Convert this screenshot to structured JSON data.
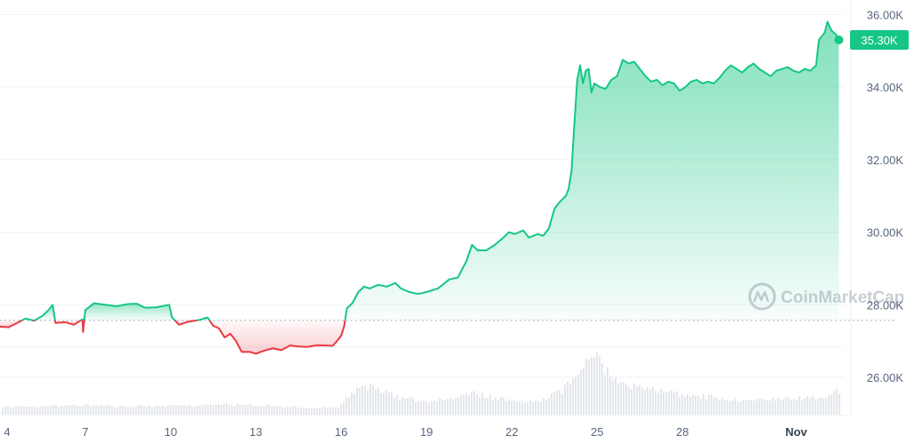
{
  "chart_data": {
    "type": "area",
    "title": "",
    "xlabel": "",
    "ylabel": "",
    "ylim": [
      24900,
      36400
    ],
    "y_ticks": [
      26000,
      28000,
      30000,
      32000,
      34000,
      36000
    ],
    "y_tick_labels": [
      "26.00K",
      "28.00K",
      "30.00K",
      "32.00K",
      "34.00K",
      "36.00K"
    ],
    "x_range": [
      4,
      33.55
    ],
    "x_ticks": [
      4,
      7,
      10,
      13,
      16,
      19,
      22,
      25,
      28,
      32
    ],
    "x_tick_labels": [
      "4",
      "7",
      "10",
      "13",
      "16",
      "19",
      "22",
      "25",
      "28",
      "Nov"
    ],
    "reference_value": 27570,
    "current_value": 35300,
    "current_label": "35.30K",
    "up_color": "#16c784",
    "down_color": "#ea3943",
    "grid": true,
    "watermark": "CoinMarketCap",
    "series": [
      {
        "values": [
          [
            4.0,
            27400
          ],
          [
            4.3,
            27380
          ],
          [
            4.6,
            27500
          ],
          [
            4.9,
            27620
          ],
          [
            5.2,
            27560
          ],
          [
            5.5,
            27700
          ],
          [
            5.7,
            27850
          ],
          [
            5.85,
            28000
          ],
          [
            5.95,
            27500
          ],
          [
            6.3,
            27520
          ],
          [
            6.6,
            27450
          ],
          [
            6.9,
            27600
          ],
          [
            6.92,
            27250
          ],
          [
            7.0,
            27850
          ],
          [
            7.3,
            28040
          ],
          [
            7.7,
            28000
          ],
          [
            8.1,
            27960
          ],
          [
            8.5,
            28020
          ],
          [
            8.8,
            28030
          ],
          [
            9.1,
            27920
          ],
          [
            9.5,
            27930
          ],
          [
            9.95,
            28000
          ],
          [
            10.05,
            27650
          ],
          [
            10.3,
            27450
          ],
          [
            10.6,
            27530
          ],
          [
            11.0,
            27580
          ],
          [
            11.3,
            27650
          ],
          [
            11.5,
            27420
          ],
          [
            11.7,
            27350
          ],
          [
            11.9,
            27100
          ],
          [
            12.1,
            27200
          ],
          [
            12.3,
            27000
          ],
          [
            12.5,
            26700
          ],
          [
            12.8,
            26700
          ],
          [
            13.0,
            26650
          ],
          [
            13.3,
            26740
          ],
          [
            13.6,
            26800
          ],
          [
            13.9,
            26750
          ],
          [
            14.2,
            26880
          ],
          [
            14.5,
            26850
          ],
          [
            14.8,
            26840
          ],
          [
            15.1,
            26880
          ],
          [
            15.4,
            26880
          ],
          [
            15.7,
            26870
          ],
          [
            15.85,
            27000
          ],
          [
            16.0,
            27150
          ],
          [
            16.1,
            27400
          ],
          [
            16.2,
            27900
          ],
          [
            16.4,
            28050
          ],
          [
            16.6,
            28350
          ],
          [
            16.8,
            28500
          ],
          [
            17.0,
            28450
          ],
          [
            17.3,
            28550
          ],
          [
            17.6,
            28500
          ],
          [
            17.9,
            28600
          ],
          [
            18.1,
            28450
          ],
          [
            18.4,
            28350
          ],
          [
            18.7,
            28300
          ],
          [
            19.0,
            28350
          ],
          [
            19.4,
            28450
          ],
          [
            19.8,
            28700
          ],
          [
            20.1,
            28750
          ],
          [
            20.4,
            29200
          ],
          [
            20.6,
            29650
          ],
          [
            20.8,
            29500
          ],
          [
            21.1,
            29500
          ],
          [
            21.4,
            29650
          ],
          [
            21.7,
            29850
          ],
          [
            21.9,
            30000
          ],
          [
            22.1,
            29950
          ],
          [
            22.4,
            30050
          ],
          [
            22.6,
            29850
          ],
          [
            22.9,
            29950
          ],
          [
            23.1,
            29900
          ],
          [
            23.3,
            30100
          ],
          [
            23.5,
            30650
          ],
          [
            23.7,
            30850
          ],
          [
            23.9,
            31000
          ],
          [
            24.0,
            31200
          ],
          [
            24.1,
            31700
          ],
          [
            24.2,
            33000
          ],
          [
            24.3,
            34200
          ],
          [
            24.4,
            34600
          ],
          [
            24.5,
            34100
          ],
          [
            24.6,
            34450
          ],
          [
            24.7,
            34500
          ],
          [
            24.8,
            33850
          ],
          [
            24.9,
            34100
          ],
          [
            25.1,
            34000
          ],
          [
            25.3,
            33950
          ],
          [
            25.5,
            34200
          ],
          [
            25.7,
            34300
          ],
          [
            25.9,
            34750
          ],
          [
            26.1,
            34650
          ],
          [
            26.3,
            34700
          ],
          [
            26.5,
            34500
          ],
          [
            26.7,
            34300
          ],
          [
            26.9,
            34150
          ],
          [
            27.1,
            34200
          ],
          [
            27.3,
            34050
          ],
          [
            27.5,
            34150
          ],
          [
            27.7,
            34100
          ],
          [
            27.9,
            33900
          ],
          [
            28.1,
            34000
          ],
          [
            28.3,
            34150
          ],
          [
            28.5,
            34200
          ],
          [
            28.7,
            34100
          ],
          [
            28.9,
            34150
          ],
          [
            29.1,
            34100
          ],
          [
            29.3,
            34250
          ],
          [
            29.5,
            34450
          ],
          [
            29.7,
            34600
          ],
          [
            29.9,
            34500
          ],
          [
            30.1,
            34400
          ],
          [
            30.3,
            34550
          ],
          [
            30.5,
            34650
          ],
          [
            30.7,
            34500
          ],
          [
            30.9,
            34400
          ],
          [
            31.1,
            34300
          ],
          [
            31.3,
            34450
          ],
          [
            31.5,
            34500
          ],
          [
            31.7,
            34550
          ],
          [
            31.9,
            34450
          ],
          [
            32.1,
            34400
          ],
          [
            32.3,
            34500
          ],
          [
            32.5,
            34450
          ],
          [
            32.7,
            34600
          ],
          [
            32.8,
            35300
          ],
          [
            33.0,
            35500
          ],
          [
            33.1,
            35800
          ],
          [
            33.25,
            35550
          ],
          [
            33.4,
            35450
          ],
          [
            33.5,
            35300
          ]
        ]
      }
    ],
    "volume": [
      [
        4.0,
        0.12
      ],
      [
        5.0,
        0.12
      ],
      [
        6.0,
        0.13
      ],
      [
        7.0,
        0.14
      ],
      [
        8.0,
        0.12
      ],
      [
        9.0,
        0.13
      ],
      [
        10.0,
        0.13
      ],
      [
        11.0,
        0.14
      ],
      [
        12.0,
        0.15
      ],
      [
        13.0,
        0.14
      ],
      [
        14.0,
        0.12
      ],
      [
        15.0,
        0.1
      ],
      [
        15.9,
        0.12
      ],
      [
        16.3,
        0.3
      ],
      [
        16.6,
        0.4
      ],
      [
        17.0,
        0.42
      ],
      [
        17.4,
        0.38
      ],
      [
        18.0,
        0.25
      ],
      [
        19.0,
        0.2
      ],
      [
        20.0,
        0.24
      ],
      [
        20.6,
        0.32
      ],
      [
        21.0,
        0.28
      ],
      [
        22.0,
        0.2
      ],
      [
        23.0,
        0.2
      ],
      [
        23.7,
        0.35
      ],
      [
        24.2,
        0.6
      ],
      [
        24.6,
        0.75
      ],
      [
        24.9,
        0.85
      ],
      [
        25.2,
        0.72
      ],
      [
        25.5,
        0.55
      ],
      [
        26.0,
        0.44
      ],
      [
        27.0,
        0.36
      ],
      [
        28.0,
        0.3
      ],
      [
        29.0,
        0.26
      ],
      [
        30.0,
        0.2
      ],
      [
        31.0,
        0.22
      ],
      [
        32.0,
        0.24
      ],
      [
        32.8,
        0.25
      ],
      [
        33.2,
        0.32
      ],
      [
        33.5,
        0.34
      ]
    ]
  }
}
